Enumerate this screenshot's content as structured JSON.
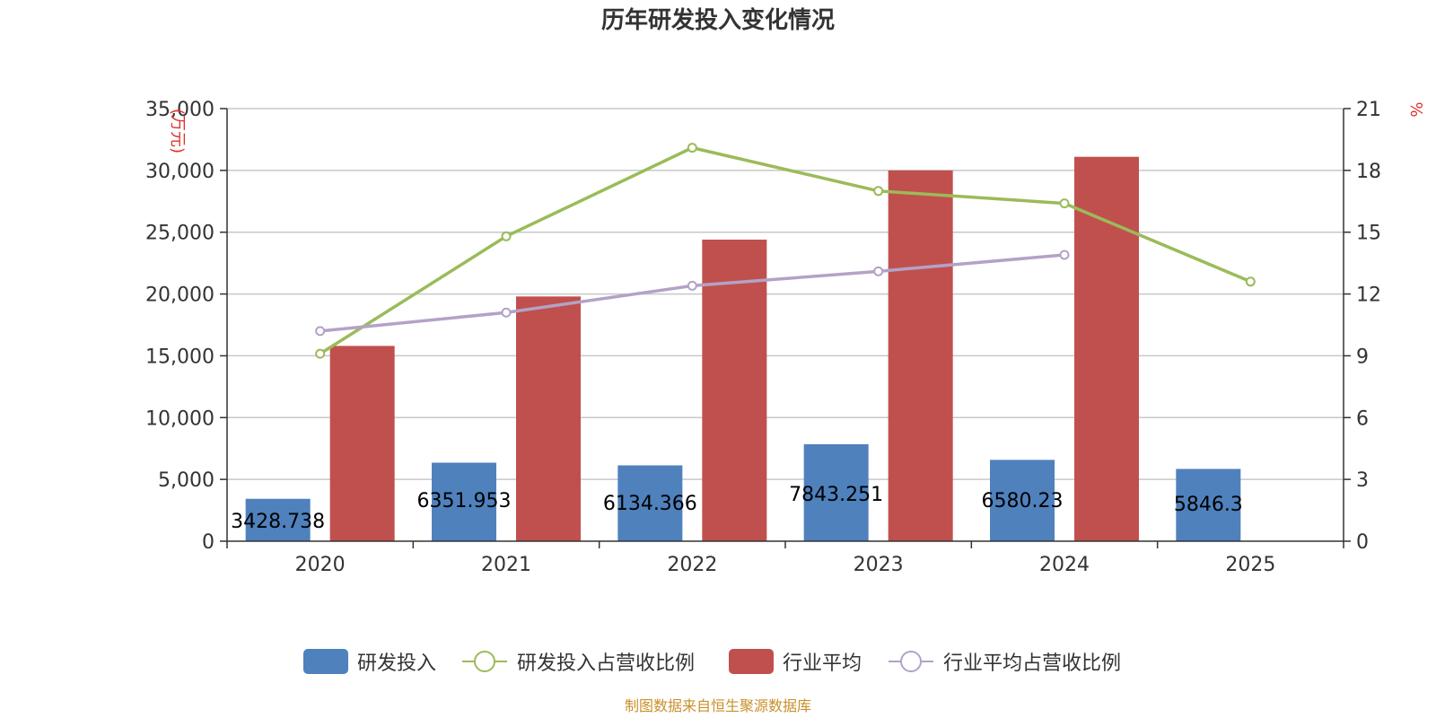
{
  "chart_data": {
    "type": "bar",
    "title": "历年研发投入变化情况",
    "categories": [
      "2020",
      "2021",
      "2022",
      "2023",
      "2024",
      "2025"
    ],
    "y_left": {
      "unit": "(万元)",
      "ylim": [
        0,
        35000
      ],
      "ticks": [
        "0",
        "5,000",
        "10,000",
        "15,000",
        "20,000",
        "25,000",
        "30,000",
        "35,000"
      ]
    },
    "y_right": {
      "unit": "%",
      "ylim": [
        0,
        21
      ],
      "ticks": [
        "0",
        "3",
        "6",
        "9",
        "12",
        "15",
        "18",
        "21"
      ]
    },
    "series": [
      {
        "name": "研发投入",
        "kind": "bar",
        "axis": "left",
        "color": "#4f81bd",
        "values": [
          3428.738,
          6351.953,
          6134.366,
          7843.251,
          6580.23,
          5846.3
        ],
        "labels": [
          "3428.738",
          "6351.953",
          "6134.366",
          "7843.251",
          "6580.23",
          "5846.3"
        ]
      },
      {
        "name": "研发投入占营收比例",
        "kind": "line",
        "axis": "right",
        "color": "#9bbb59",
        "values": [
          9.1,
          14.8,
          19.1,
          17.0,
          16.4,
          12.6
        ]
      },
      {
        "name": "行业平均",
        "kind": "bar",
        "axis": "left",
        "color": "#c0504d",
        "values": [
          15800,
          19800,
          24400,
          30000,
          31100,
          null
        ]
      },
      {
        "name": "行业平均占营收比例",
        "kind": "line",
        "axis": "right",
        "color": "#b3a2c7",
        "values": [
          10.2,
          11.1,
          12.4,
          13.1,
          13.9,
          null
        ]
      }
    ],
    "grid": true,
    "legend": "bottom"
  },
  "footer": {
    "source": "制图数据来自恒生聚源数据库"
  }
}
